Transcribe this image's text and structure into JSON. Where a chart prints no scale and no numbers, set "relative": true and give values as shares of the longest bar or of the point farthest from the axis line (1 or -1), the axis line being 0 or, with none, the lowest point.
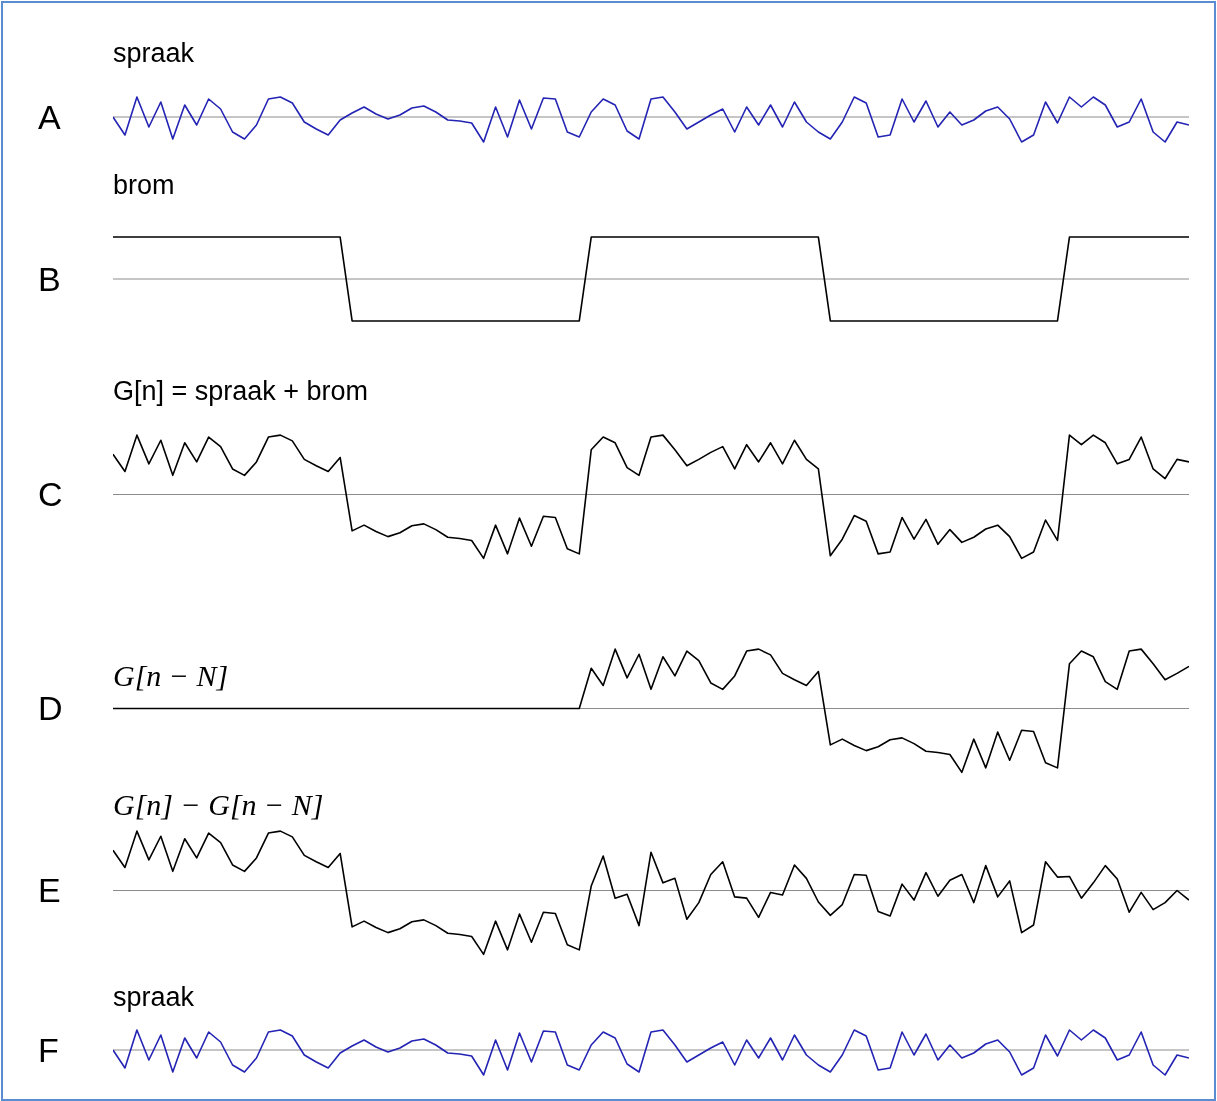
{
  "chart_data": [
    {
      "type": "line",
      "title": "spraak",
      "annotations": [
        "A"
      ],
      "relative": true,
      "tick_labels": false,
      "marker": "none",
      "categories": [
        null,
        null,
        null,
        null,
        null,
        null,
        null,
        null,
        null,
        null,
        null,
        null,
        null,
        null,
        null,
        null,
        null,
        null,
        null,
        null,
        null,
        null,
        null,
        null,
        null,
        null,
        null,
        null,
        null,
        null,
        null,
        null,
        null,
        null,
        null,
        null,
        null,
        null,
        null,
        null,
        null,
        null,
        null,
        null,
        null,
        null,
        null,
        null,
        null,
        null,
        null,
        null,
        null,
        null,
        null,
        null,
        null,
        null,
        null,
        null,
        null,
        null,
        null,
        null,
        null,
        null,
        null,
        null,
        null,
        null,
        null,
        null,
        null,
        null,
        null,
        null,
        null,
        null,
        null,
        null,
        null,
        null,
        null,
        null,
        null,
        null,
        null,
        null,
        null,
        null,
        null
      ],
      "series": [
        {
          "color": "#2323b4",
          "values": [
            0,
            -0.72,
            0.8,
            -0.4,
            0.6,
            -0.88,
            0.48,
            -0.32,
            0.72,
            0.32,
            -0.6,
            -0.88,
            -0.32,
            0.72,
            0.8,
            0.56,
            -0.2,
            -0.48,
            -0.72,
            -0.12,
            0.16,
            0.4,
            0.12,
            -0.08,
            0.08,
            0.36,
            0.44,
            0.2,
            -0.12,
            -0.16,
            -0.24,
            -1,
            0.4,
            -0.8,
            0.68,
            -0.48,
            0.76,
            0.72,
            -0.6,
            -0.8,
            0.2,
            0.72,
            0.48,
            -0.56,
            -0.88,
            0.72,
            0.8,
            0.2,
            -0.48,
            -0.2,
            0.08,
            0.32,
            -0.6,
            0.4,
            -0.32,
            0.48,
            -0.4,
            0.6,
            -0.2,
            -0.6,
            -0.88,
            -0.2,
            0.8,
            0.56,
            -0.8,
            -0.72,
            0.72,
            -0.2,
            0.64,
            -0.4,
            0.2,
            -0.32,
            -0.12,
            0.24,
            0.4,
            -0.08,
            -1,
            -0.72,
            0.6,
            -0.24,
            0.8,
            0.4,
            0.8,
            0.48,
            -0.4,
            -0.2,
            0.72,
            -0.6,
            -1,
            -0.2,
            -0.32
          ]
        }
      ]
    },
    {
      "type": "line",
      "title": "brom",
      "annotations": [
        "B"
      ],
      "relative": true,
      "tick_labels": false,
      "marker": "none",
      "categories": [
        null,
        null,
        null,
        null,
        null,
        null,
        null,
        null,
        null,
        null,
        null,
        null,
        null,
        null,
        null,
        null,
        null,
        null,
        null,
        null,
        null,
        null,
        null,
        null,
        null,
        null,
        null,
        null,
        null,
        null,
        null,
        null,
        null,
        null,
        null,
        null,
        null,
        null,
        null,
        null,
        null,
        null,
        null,
        null,
        null,
        null,
        null,
        null,
        null,
        null,
        null,
        null,
        null,
        null,
        null,
        null,
        null,
        null,
        null,
        null,
        null,
        null,
        null,
        null,
        null,
        null,
        null,
        null,
        null,
        null,
        null,
        null,
        null,
        null,
        null,
        null,
        null,
        null,
        null,
        null,
        null,
        null,
        null,
        null,
        null,
        null,
        null,
        null,
        null,
        null,
        null
      ],
      "series": [
        {
          "color": "#000000",
          "values": [
            1,
            1,
            1,
            1,
            1,
            1,
            1,
            1,
            1,
            1,
            1,
            1,
            1,
            1,
            1,
            1,
            1,
            1,
            1,
            1,
            -1,
            -1,
            -1,
            -1,
            -1,
            -1,
            -1,
            -1,
            -1,
            -1,
            -1,
            -1,
            -1,
            -1,
            -1,
            -1,
            -1,
            -1,
            -1,
            -1,
            1,
            1,
            1,
            1,
            1,
            1,
            1,
            1,
            1,
            1,
            1,
            1,
            1,
            1,
            1,
            1,
            1,
            1,
            1,
            1,
            -1,
            -1,
            -1,
            -1,
            -1,
            -1,
            -1,
            -1,
            -1,
            -1,
            -1,
            -1,
            -1,
            -1,
            -1,
            -1,
            -1,
            -1,
            -1,
            -1,
            1,
            1,
            1,
            1,
            1,
            1,
            1,
            1,
            1,
            1,
            1
          ]
        }
      ]
    },
    {
      "type": "line",
      "title": "G[n]  = spraak + brom",
      "annotations": [
        "C"
      ],
      "relative": true,
      "tick_labels": false,
      "marker": "none",
      "categories": [
        null,
        null,
        null,
        null,
        null,
        null,
        null,
        null,
        null,
        null,
        null,
        null,
        null,
        null,
        null,
        null,
        null,
        null,
        null,
        null,
        null,
        null,
        null,
        null,
        null,
        null,
        null,
        null,
        null,
        null,
        null,
        null,
        null,
        null,
        null,
        null,
        null,
        null,
        null,
        null,
        null,
        null,
        null,
        null,
        null,
        null,
        null,
        null,
        null,
        null,
        null,
        null,
        null,
        null,
        null,
        null,
        null,
        null,
        null,
        null,
        null,
        null,
        null,
        null,
        null,
        null,
        null,
        null,
        null,
        null,
        null,
        null,
        null,
        null,
        null,
        null,
        null,
        null,
        null,
        null,
        null,
        null,
        null,
        null,
        null,
        null,
        null,
        null,
        null,
        null,
        null
      ],
      "series": [
        {
          "color": "#000000",
          "values": [
            0.63,
            0.36,
            0.93,
            0.48,
            0.85,
            0.3,
            0.81,
            0.51,
            0.9,
            0.75,
            0.4,
            0.3,
            0.51,
            0.9,
            0.93,
            0.84,
            0.55,
            0.45,
            0.36,
            0.58,
            -0.57,
            -0.48,
            -0.58,
            -0.66,
            -0.6,
            -0.49,
            -0.46,
            -0.55,
            -0.67,
            -0.69,
            -0.72,
            -1,
            -0.48,
            -0.93,
            -0.37,
            -0.81,
            -0.34,
            -0.36,
            -0.85,
            -0.93,
            0.7,
            0.9,
            0.81,
            0.42,
            0.3,
            0.9,
            0.93,
            0.7,
            0.45,
            0.55,
            0.66,
            0.75,
            0.4,
            0.78,
            0.51,
            0.81,
            0.48,
            0.85,
            0.55,
            0.4,
            -0.96,
            -0.7,
            -0.33,
            -0.42,
            -0.93,
            -0.9,
            -0.36,
            -0.7,
            -0.39,
            -0.78,
            -0.55,
            -0.75,
            -0.67,
            -0.54,
            -0.48,
            -0.66,
            -1,
            -0.9,
            -0.4,
            -0.72,
            0.93,
            0.78,
            0.93,
            0.81,
            0.48,
            0.55,
            0.9,
            0.4,
            0.25,
            0.55,
            0.51
          ]
        }
      ]
    },
    {
      "type": "line",
      "title": "G[n − N]",
      "annotations": [
        "D"
      ],
      "relative": true,
      "tick_labels": false,
      "marker": "none",
      "categories": [
        null,
        null,
        null,
        null,
        null,
        null,
        null,
        null,
        null,
        null,
        null,
        null,
        null,
        null,
        null,
        null,
        null,
        null,
        null,
        null,
        null,
        null,
        null,
        null,
        null,
        null,
        null,
        null,
        null,
        null,
        null,
        null,
        null,
        null,
        null,
        null,
        null,
        null,
        null,
        null,
        null,
        null,
        null,
        null,
        null,
        null,
        null,
        null,
        null,
        null,
        null,
        null,
        null,
        null,
        null,
        null,
        null,
        null,
        null,
        null,
        null,
        null,
        null,
        null,
        null,
        null,
        null,
        null,
        null,
        null,
        null,
        null,
        null,
        null,
        null,
        null,
        null,
        null,
        null,
        null,
        null,
        null,
        null,
        null,
        null,
        null,
        null,
        null,
        null,
        null,
        null
      ],
      "series": [
        {
          "color": "#000000",
          "values": [
            0,
            0,
            0,
            0,
            0,
            0,
            0,
            0,
            0,
            0,
            0,
            0,
            0,
            0,
            0,
            0,
            0,
            0,
            0,
            0,
            0,
            0,
            0,
            0,
            0,
            0,
            0,
            0,
            0,
            0,
            0,
            0,
            0,
            0,
            0,
            0,
            0,
            0,
            0,
            0,
            0.63,
            0.36,
            0.93,
            0.48,
            0.85,
            0.3,
            0.81,
            0.51,
            0.9,
            0.75,
            0.4,
            0.3,
            0.51,
            0.9,
            0.93,
            0.84,
            0.55,
            0.45,
            0.36,
            0.58,
            -0.57,
            -0.48,
            -0.58,
            -0.66,
            -0.6,
            -0.49,
            -0.46,
            -0.55,
            -0.67,
            -0.69,
            -0.72,
            -1,
            -0.48,
            -0.93,
            -0.37,
            -0.81,
            -0.34,
            -0.36,
            -0.85,
            -0.93,
            0.7,
            0.9,
            0.81,
            0.42,
            0.3,
            0.9,
            0.93,
            0.7,
            0.45,
            0.55,
            0.66
          ]
        }
      ]
    },
    {
      "type": "line",
      "title": "G[n] −  G[n − N]",
      "annotations": [
        "E"
      ],
      "relative": true,
      "tick_labels": false,
      "marker": "none",
      "categories": [
        null,
        null,
        null,
        null,
        null,
        null,
        null,
        null,
        null,
        null,
        null,
        null,
        null,
        null,
        null,
        null,
        null,
        null,
        null,
        null,
        null,
        null,
        null,
        null,
        null,
        null,
        null,
        null,
        null,
        null,
        null,
        null,
        null,
        null,
        null,
        null,
        null,
        null,
        null,
        null,
        null,
        null,
        null,
        null,
        null,
        null,
        null,
        null,
        null,
        null,
        null,
        null,
        null,
        null,
        null,
        null,
        null,
        null,
        null,
        null,
        null,
        null,
        null,
        null,
        null,
        null,
        null,
        null,
        null,
        null,
        null,
        null,
        null,
        null,
        null,
        null,
        null,
        null,
        null,
        null,
        null,
        null,
        null,
        null,
        null,
        null,
        null,
        null,
        null,
        null,
        null
      ],
      "series": [
        {
          "color": "#000000",
          "values": [
            0.63,
            0.36,
            0.93,
            0.48,
            0.85,
            0.3,
            0.81,
            0.51,
            0.9,
            0.75,
            0.4,
            0.3,
            0.51,
            0.9,
            0.93,
            0.84,
            0.55,
            0.45,
            0.36,
            0.58,
            -0.57,
            -0.48,
            -0.58,
            -0.66,
            -0.6,
            -0.49,
            -0.46,
            -0.55,
            -0.67,
            -0.69,
            -0.72,
            -1,
            -0.48,
            -0.93,
            -0.37,
            -0.81,
            -0.34,
            -0.36,
            -0.85,
            -0.93,
            0.07,
            0.54,
            -0.12,
            -0.06,
            -0.55,
            0.6,
            0.12,
            0.19,
            -0.45,
            -0.19,
            0.25,
            0.45,
            -0.1,
            -0.12,
            -0.42,
            -0.03,
            -0.07,
            0.4,
            0.19,
            -0.18,
            -0.39,
            -0.22,
            0.25,
            0.24,
            -0.33,
            -0.4,
            0.1,
            -0.15,
            0.28,
            -0.09,
            0.16,
            0.25,
            -0.19,
            0.39,
            -0.1,
            0.15,
            -0.66,
            -0.54,
            0.45,
            0.21,
            0.22,
            -0.12,
            0.12,
            0.39,
            0.18,
            -0.34,
            -0.03,
            -0.3,
            -0.19,
            0,
            -0.15
          ]
        }
      ]
    },
    {
      "type": "line",
      "title": "spraak",
      "annotations": [
        "F"
      ],
      "relative": true,
      "tick_labels": false,
      "marker": "none",
      "categories": [
        null,
        null,
        null,
        null,
        null,
        null,
        null,
        null,
        null,
        null,
        null,
        null,
        null,
        null,
        null,
        null,
        null,
        null,
        null,
        null,
        null,
        null,
        null,
        null,
        null,
        null,
        null,
        null,
        null,
        null,
        null,
        null,
        null,
        null,
        null,
        null,
        null,
        null,
        null,
        null,
        null,
        null,
        null,
        null,
        null,
        null,
        null,
        null,
        null,
        null,
        null,
        null,
        null,
        null,
        null,
        null,
        null,
        null,
        null,
        null,
        null,
        null,
        null,
        null,
        null,
        null,
        null,
        null,
        null,
        null,
        null,
        null,
        null,
        null,
        null,
        null,
        null,
        null,
        null,
        null,
        null,
        null,
        null,
        null,
        null,
        null,
        null,
        null,
        null,
        null,
        null
      ],
      "series": [
        {
          "color": "#2323b4",
          "values": [
            0,
            -0.72,
            0.8,
            -0.4,
            0.6,
            -0.88,
            0.48,
            -0.32,
            0.72,
            0.32,
            -0.6,
            -0.88,
            -0.32,
            0.72,
            0.8,
            0.56,
            -0.2,
            -0.48,
            -0.72,
            -0.12,
            0.16,
            0.4,
            0.12,
            -0.08,
            0.08,
            0.36,
            0.44,
            0.2,
            -0.12,
            -0.16,
            -0.24,
            -1,
            0.4,
            -0.8,
            0.68,
            -0.48,
            0.76,
            0.72,
            -0.6,
            -0.8,
            0.2,
            0.72,
            0.48,
            -0.56,
            -0.88,
            0.72,
            0.8,
            0.2,
            -0.48,
            -0.2,
            0.08,
            0.32,
            -0.6,
            0.4,
            -0.32,
            0.48,
            -0.4,
            0.6,
            -0.2,
            -0.6,
            -0.88,
            -0.2,
            0.8,
            0.56,
            -0.8,
            -0.72,
            0.72,
            -0.2,
            0.64,
            -0.4,
            0.2,
            -0.32,
            -0.12,
            0.24,
            0.4,
            -0.08,
            -1,
            -0.72,
            0.6,
            -0.24,
            0.8,
            0.4,
            0.8,
            0.48,
            -0.4,
            -0.2,
            0.72,
            -0.6,
            -1,
            -0.2,
            -0.32
          ]
        }
      ]
    }
  ]
}
